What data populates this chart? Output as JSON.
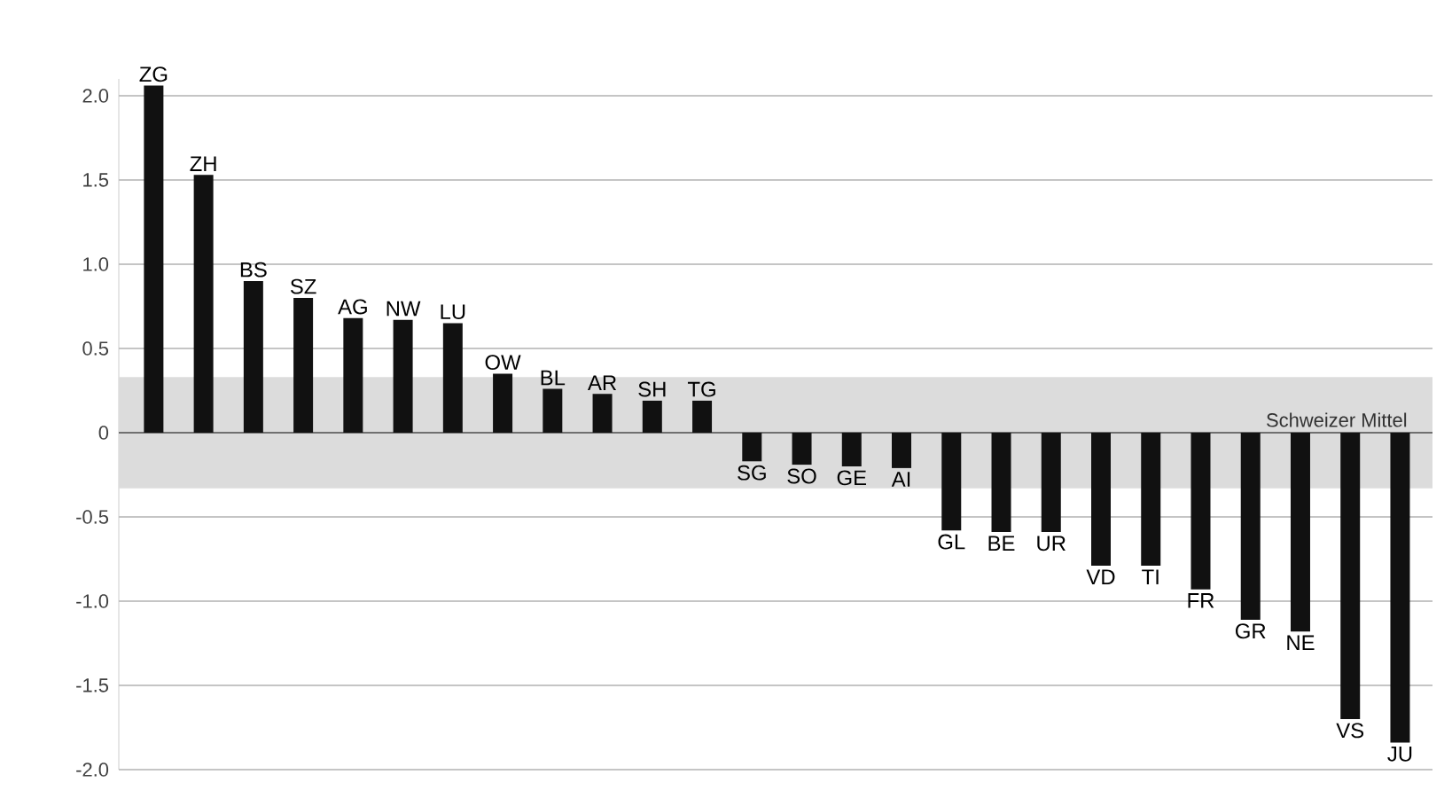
{
  "chart_data": {
    "type": "bar",
    "categories": [
      "ZG",
      "ZH",
      "BS",
      "SZ",
      "AG",
      "NW",
      "LU",
      "OW",
      "BL",
      "AR",
      "SH",
      "TG",
      "SG",
      "SO",
      "GE",
      "AI",
      "GL",
      "BE",
      "UR",
      "VD",
      "TI",
      "FR",
      "GR",
      "NE",
      "VS",
      "JU"
    ],
    "values": [
      2.06,
      1.53,
      0.9,
      0.8,
      0.68,
      0.67,
      0.65,
      0.35,
      0.26,
      0.23,
      0.19,
      0.19,
      -0.17,
      -0.19,
      -0.2,
      -0.21,
      -0.58,
      -0.59,
      -0.59,
      -0.79,
      -0.79,
      -0.93,
      -1.11,
      -1.18,
      -1.7,
      -1.84
    ],
    "color": "#111111",
    "ylim": [
      -2.0,
      2.1
    ],
    "yticks": [
      {
        "value": -2,
        "label": "-2.0"
      },
      {
        "value": -1.5,
        "label": "-1.5"
      },
      {
        "value": -1,
        "label": "-1.0"
      },
      {
        "value": -0.5,
        "label": "-0.5"
      },
      0,
      {
        "value": 0.5,
        "label": "0.5"
      },
      {
        "value": 1,
        "label": "1.0"
      },
      {
        "value": 1.5,
        "label": "1.5"
      },
      {
        "value": 2,
        "label": "2.0"
      }
    ],
    "grid": "y",
    "bands": [
      {
        "axis": "y",
        "from": -0.33,
        "to": 0.33,
        "label": "Schweizer Mittel",
        "color": "#dcdcdc"
      }
    ]
  }
}
